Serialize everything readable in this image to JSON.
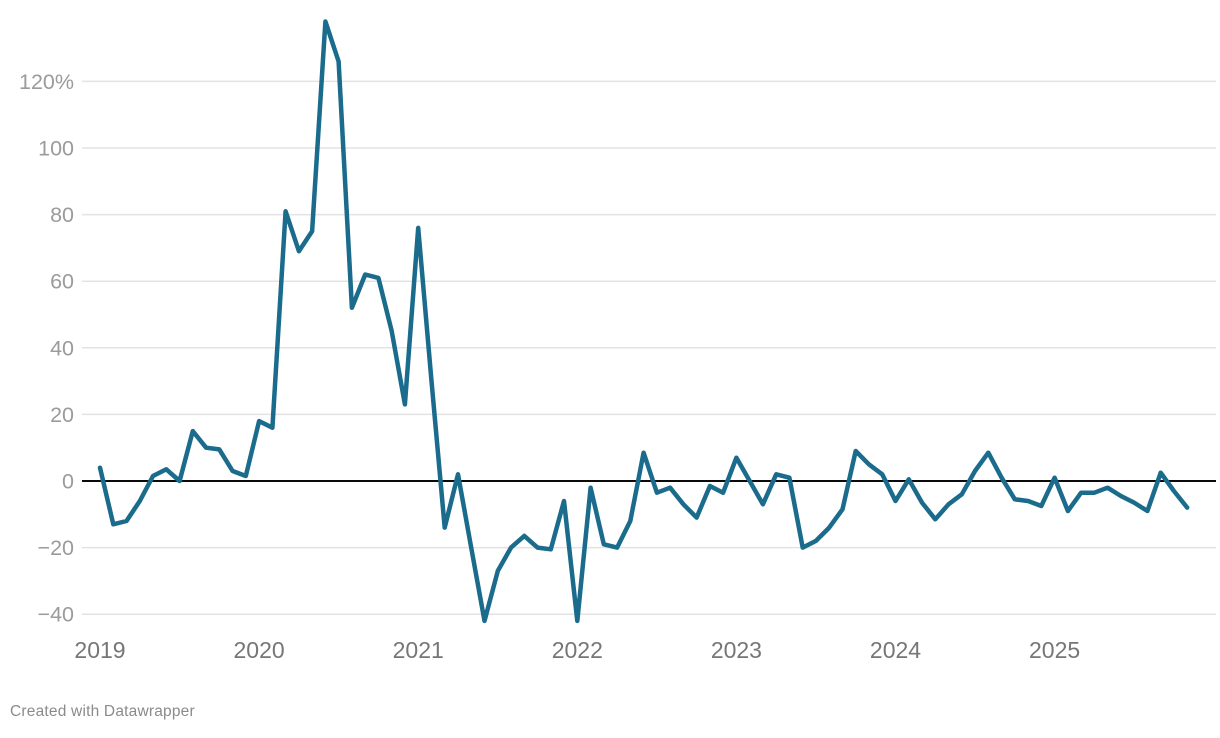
{
  "chart_data": {
    "type": "line",
    "title": "",
    "xlabel": "",
    "ylabel": "",
    "unit": "%",
    "frequency": "monthly",
    "start_month": "2019-01",
    "end_month": "2025-11",
    "values": [
      4,
      -13,
      -12,
      -6,
      1.5,
      3.5,
      0,
      15,
      10,
      9.5,
      3,
      1.5,
      18,
      16,
      81,
      69,
      75,
      138,
      126,
      52,
      62,
      61,
      45,
      23,
      76,
      30,
      -14,
      2,
      -20,
      -42,
      -27,
      -20,
      -16.5,
      -20,
      -20.5,
      -6,
      -42,
      -2,
      -19,
      -20,
      -12,
      8.5,
      -3.5,
      -2,
      -7,
      -11,
      -1.5,
      -3.5,
      7,
      0,
      -7,
      2,
      1,
      -20,
      -18,
      -14,
      -8.5,
      9,
      5,
      2,
      -6,
      0.5,
      -6.5,
      -11.5,
      -7,
      -4,
      3,
      8.5,
      1,
      -5.5,
      -6,
      -7.5,
      1,
      -9,
      -3.5,
      -3.5,
      -2,
      -4.5,
      -6.5,
      -9,
      2.5,
      -3,
      -8
    ],
    "x_tick_labels": [
      "2019",
      "2020",
      "2021",
      "2022",
      "2023",
      "2024",
      "2025"
    ],
    "y_ticks": [
      120,
      100,
      80,
      60,
      40,
      20,
      0,
      -20,
      -40
    ],
    "y_tick_labels": [
      "120%",
      "100",
      "80",
      "60",
      "40",
      "20",
      "0",
      "−20",
      "−40"
    ],
    "ylim": [
      -45,
      140
    ],
    "grid": "horizontal",
    "legend": "none",
    "baseline_at_zero": true,
    "colors": {
      "line": "#1a6b8c",
      "grid": "#e3e3e3",
      "zero_line": "#0a0a0a",
      "y_label": "#9b9b9b",
      "x_label": "#767676",
      "background": "#ffffff"
    }
  },
  "footer": {
    "credit": "Created with Datawrapper"
  }
}
